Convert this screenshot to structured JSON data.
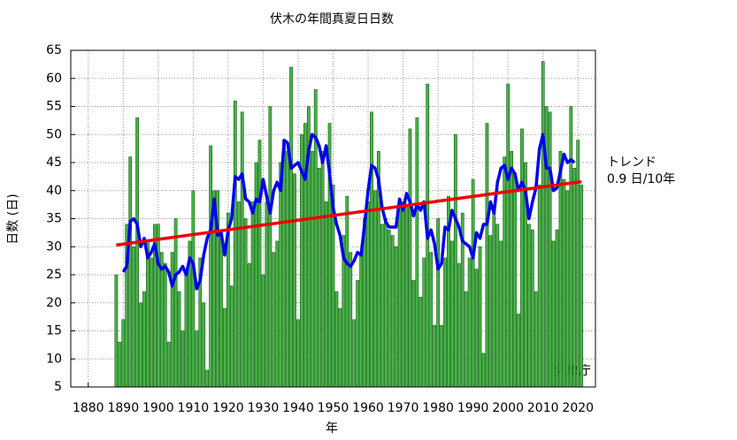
{
  "chart_data": {
    "type": "bar",
    "title": "伏木の年間真夏日日数",
    "x_label": "年",
    "y_label": "日数 (日)",
    "trend_label": "トレンド",
    "trend_rate": "0.9 日/10年",
    "source": "気象庁",
    "xlim": [
      1875,
      2025
    ],
    "ylim": [
      5,
      65
    ],
    "xticks": [
      1880,
      1890,
      1900,
      1910,
      1920,
      1930,
      1940,
      1950,
      1960,
      1970,
      1980,
      1990,
      2000,
      2010,
      2020
    ],
    "yticks": [
      5,
      10,
      15,
      20,
      25,
      30,
      35,
      40,
      45,
      50,
      55,
      60,
      65
    ],
    "grid": true,
    "x": [
      1888,
      1889,
      1890,
      1891,
      1892,
      1893,
      1894,
      1895,
      1896,
      1897,
      1898,
      1899,
      1900,
      1901,
      1902,
      1903,
      1904,
      1905,
      1906,
      1907,
      1908,
      1909,
      1910,
      1911,
      1912,
      1913,
      1914,
      1915,
      1916,
      1917,
      1918,
      1919,
      1920,
      1921,
      1922,
      1923,
      1924,
      1925,
      1926,
      1927,
      1928,
      1929,
      1930,
      1931,
      1932,
      1933,
      1934,
      1935,
      1936,
      1937,
      1938,
      1939,
      1940,
      1941,
      1942,
      1943,
      1944,
      1945,
      1946,
      1947,
      1948,
      1949,
      1950,
      1951,
      1952,
      1953,
      1954,
      1955,
      1956,
      1957,
      1958,
      1959,
      1960,
      1961,
      1962,
      1963,
      1964,
      1965,
      1966,
      1967,
      1968,
      1969,
      1970,
      1971,
      1972,
      1973,
      1974,
      1975,
      1976,
      1977,
      1978,
      1979,
      1980,
      1981,
      1982,
      1983,
      1984,
      1985,
      1986,
      1987,
      1988,
      1989,
      1990,
      1991,
      1992,
      1993,
      1994,
      1995,
      1996,
      1997,
      1998,
      1999,
      2000,
      2001,
      2002,
      2003,
      2004,
      2005,
      2006,
      2007,
      2008,
      2009,
      2010,
      2011,
      2012,
      2013,
      2014,
      2015,
      2016,
      2017,
      2018,
      2019,
      2020,
      2021
    ],
    "bars": {
      "color": "#44b544",
      "values": [
        25,
        13,
        17,
        34,
        46,
        30,
        53,
        20,
        22,
        31,
        28,
        34,
        34,
        29,
        27,
        13,
        29,
        35,
        22,
        15,
        25,
        31,
        40,
        15,
        28,
        20,
        8,
        48,
        40,
        40,
        32,
        19,
        36,
        23,
        56,
        38,
        54,
        35,
        27,
        38,
        45,
        49,
        25,
        38,
        55,
        29,
        31,
        45,
        49,
        47,
        62,
        43,
        17,
        50,
        52,
        55,
        47,
        58,
        44,
        47,
        38,
        52,
        41,
        22,
        19,
        32,
        39,
        29,
        17,
        24,
        29,
        35,
        38,
        54,
        40,
        47,
        34,
        35,
        33,
        32,
        30,
        38,
        38,
        37,
        51,
        24,
        53,
        21,
        28,
        59,
        29,
        16,
        35,
        16,
        28,
        39,
        31,
        50,
        27,
        36,
        22,
        28,
        42,
        26,
        30,
        11,
        52,
        32,
        37,
        34,
        31,
        46,
        59,
        47,
        43,
        18,
        51,
        45,
        34,
        33,
        22,
        41,
        63,
        55,
        54,
        31,
        33,
        47,
        42,
        40,
        55,
        44,
        49,
        41
      ]
    },
    "moving_average": {
      "color": "#0000ee",
      "values": [
        null,
        null,
        25.5,
        26.5,
        34.5,
        35,
        34,
        30,
        31.5,
        28,
        29,
        30.5,
        27,
        26,
        26.5,
        25.5,
        23,
        25,
        25.5,
        26.5,
        25,
        28,
        27,
        22.5,
        24,
        28.5,
        31.5,
        33,
        38.5,
        32,
        32.5,
        28.5,
        33,
        35,
        42.5,
        42,
        43,
        38.5,
        38,
        36,
        38.5,
        38,
        42,
        39,
        36,
        40,
        41.5,
        40,
        49,
        48.5,
        44,
        44.5,
        45,
        43.5,
        42,
        47,
        50,
        49.5,
        48,
        45,
        48,
        43,
        37,
        34,
        32,
        28,
        27,
        26.5,
        27.5,
        29,
        28.5,
        34,
        40,
        44.5,
        44,
        42,
        37,
        34.5,
        33.5,
        33.5,
        33.5,
        38.5,
        36.5,
        39.5,
        38,
        35.5,
        37.5,
        36.5,
        38,
        31.5,
        33,
        30.5,
        26,
        27,
        33.5,
        33,
        36.5,
        35,
        33.5,
        31,
        30.5,
        30,
        28,
        32.5,
        31.5,
        34,
        34,
        38,
        36,
        41.5,
        44,
        44.5,
        42,
        44,
        43,
        40,
        41.5,
        40,
        35,
        38,
        40.5,
        47.5,
        50,
        44,
        44,
        40,
        40.5,
        43.5,
        46.5,
        45,
        45.5,
        45,
        null,
        null
      ]
    },
    "trend": {
      "color": "#ee0000",
      "x": [
        1888,
        2021
      ],
      "values": [
        30.3,
        41.6
      ]
    }
  }
}
